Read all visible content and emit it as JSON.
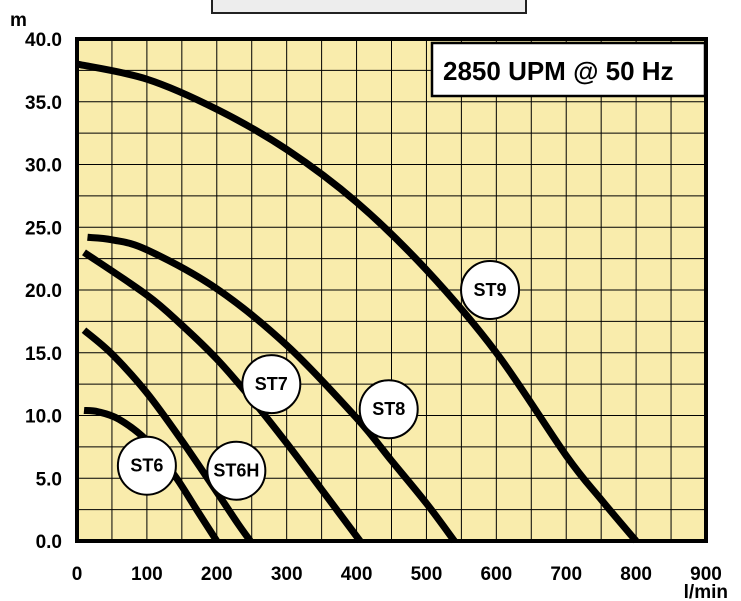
{
  "chart_data": {
    "type": "line",
    "annotation": "2850 UPM @ 50 Hz",
    "xlabel": "l/min",
    "ylabel": "m",
    "xlim": [
      0,
      900
    ],
    "ylim": [
      0,
      40
    ],
    "grid": true,
    "background_color": "#f9ecac",
    "curve_color": "#000000",
    "x_ticks": [
      "0",
      "100",
      "200",
      "300",
      "400",
      "500",
      "600",
      "700",
      "800",
      "900"
    ],
    "y_ticks": [
      "0.0",
      "5.0",
      "10.0",
      "15.0",
      "20.0",
      "25.0",
      "30.0",
      "35.0",
      "40.0"
    ],
    "series": [
      {
        "name": "ST6",
        "label_at": [
          100,
          6.0
        ],
        "x": [
          10,
          30,
          60,
          100,
          140,
          170,
          200
        ],
        "y": [
          10.4,
          10.3,
          9.7,
          8.0,
          5.2,
          2.6,
          0.0
        ]
      },
      {
        "name": "ST6H",
        "label_at": [
          228,
          5.6
        ],
        "x": [
          10,
          50,
          100,
          150,
          200,
          230,
          248
        ],
        "y": [
          16.8,
          14.9,
          11.8,
          8.0,
          3.9,
          1.4,
          0.0
        ]
      },
      {
        "name": "ST7",
        "label_at": [
          278,
          12.5
        ],
        "x": [
          10,
          100,
          150,
          200,
          250,
          300,
          350,
          405
        ],
        "y": [
          23.0,
          19.6,
          17.2,
          14.5,
          11.3,
          7.8,
          4.1,
          0.0
        ]
      },
      {
        "name": "ST8",
        "label_at": [
          446,
          10.5
        ],
        "x": [
          15,
          50,
          100,
          200,
          300,
          400,
          450,
          500,
          540
        ],
        "y": [
          24.2,
          24.0,
          23.2,
          20.1,
          15.6,
          9.8,
          6.4,
          3.0,
          0.0
        ]
      },
      {
        "name": "ST9",
        "label_at": [
          591,
          20.0
        ],
        "x": [
          0,
          100,
          200,
          300,
          400,
          500,
          600,
          700,
          750,
          800
        ],
        "y": [
          38.0,
          36.8,
          34.4,
          31.2,
          27.0,
          21.6,
          15.0,
          6.8,
          3.3,
          0.0
        ]
      }
    ]
  }
}
